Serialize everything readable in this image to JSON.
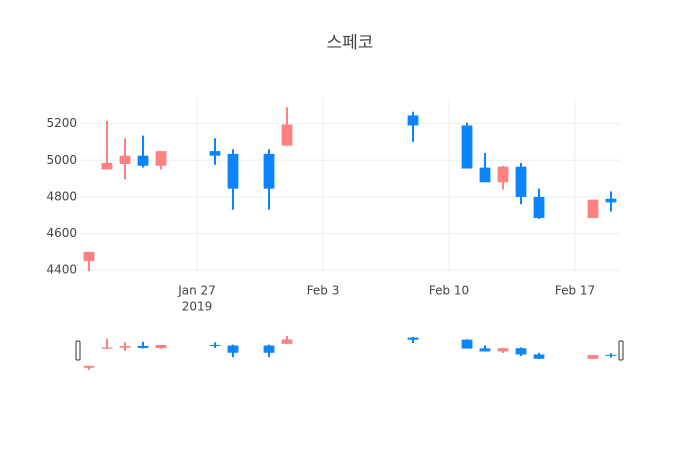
{
  "chart_data": {
    "type": "candlestick",
    "title": "스페코",
    "x": [
      "2019-01-21",
      "2019-01-22",
      "2019-01-23",
      "2019-01-24",
      "2019-01-25",
      "2019-01-28",
      "2019-01-29",
      "2019-01-31",
      "2019-02-01",
      "2019-02-08",
      "2019-02-11",
      "2019-02-12",
      "2019-02-13",
      "2019-02-14",
      "2019-02-15",
      "2019-02-18",
      "2019-02-19"
    ],
    "open": [
      4450,
      4950,
      4980,
      5025,
      4970,
      5050,
      5035,
      5035,
      5080,
      5245,
      5190,
      4960,
      4880,
      4965,
      4800,
      4685,
      4790
    ],
    "high": [
      4500,
      5215,
      5120,
      5135,
      5050,
      5120,
      5060,
      5060,
      5290,
      5265,
      5205,
      5040,
      4970,
      4985,
      4845,
      4785,
      4830
    ],
    "low": [
      4395,
      4950,
      4895,
      4960,
      4950,
      4975,
      4730,
      4730,
      5080,
      5100,
      4955,
      4880,
      4840,
      4760,
      4680,
      4685,
      4720
    ],
    "close": [
      4500,
      4985,
      5025,
      4970,
      5050,
      5025,
      4845,
      4845,
      5195,
      5190,
      4955,
      4880,
      4965,
      4800,
      4685,
      4785,
      4770
    ],
    "increasing_color": "#ff8080",
    "decreasing_color": "#0a84ff",
    "xlim": [
      "2019-01-20T12:00:00Z",
      "2019-02-19T12:00:00Z"
    ],
    "xticks": [
      {
        "value": "2019-01-27",
        "label": "Jan 27",
        "sublabel": "2019"
      },
      {
        "value": "2019-02-03",
        "label": "Feb 3"
      },
      {
        "value": "2019-02-10",
        "label": "Feb 10"
      },
      {
        "value": "2019-02-17",
        "label": "Feb 17"
      }
    ],
    "ylim": [
      4390,
      5340
    ],
    "yticks": [
      4400,
      4600,
      4800,
      5000,
      5200
    ],
    "grid": true,
    "rangeslider": true
  }
}
